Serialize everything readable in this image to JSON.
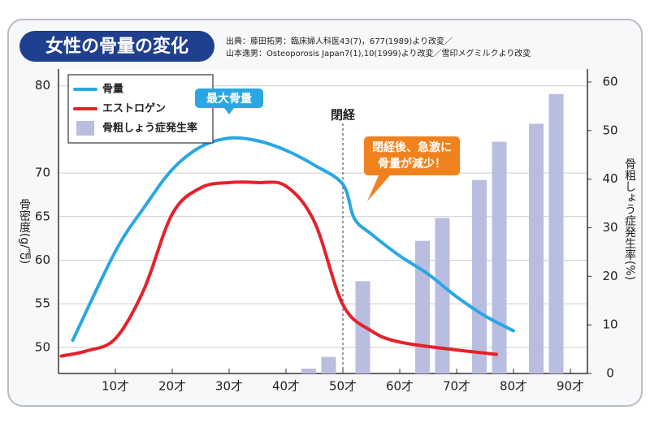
{
  "chart_data": {
    "type": "line",
    "title": "女性の骨量の変化",
    "source": [
      "出典：藤田拓男：臨床婦人科医43(7)，677(1989)より改変／",
      "山本逸男：Osteoporosis Japan7(1),10(1999)より改変／雪印メグミルクより改変"
    ],
    "ylabel": "骨密度(g/㎠)",
    "y2label": "骨粗しょう症発生率(%)",
    "xlim": [
      0,
      93
    ],
    "xticks": [
      {
        "value": 10,
        "label": "10才"
      },
      {
        "value": 20,
        "label": "20才"
      },
      {
        "value": 30,
        "label": "30才"
      },
      {
        "value": 40,
        "label": "40才"
      },
      {
        "value": 50,
        "label": "50才"
      },
      {
        "value": 60,
        "label": "60才"
      },
      {
        "value": 70,
        "label": "70才"
      },
      {
        "value": 80,
        "label": "80才"
      },
      {
        "value": 90,
        "label": "90才"
      }
    ],
    "ylim": [
      47,
      81
    ],
    "yticks": [
      50,
      55,
      60,
      65,
      70,
      80
    ],
    "y2lim": [
      0,
      61
    ],
    "y2ticks": [
      0,
      10,
      20,
      30,
      40,
      50,
      60
    ],
    "legend": "upper left",
    "series": [
      {
        "name": "骨量",
        "type": "line",
        "color": "#2aa7e3",
        "x": [
          2.5,
          10,
          15,
          20,
          25,
          30,
          35,
          40,
          45,
          50,
          52,
          55,
          60,
          65,
          70,
          75,
          80
        ],
        "values": [
          50.8,
          61,
          66,
          70.4,
          73,
          74,
          73.7,
          72.6,
          70.9,
          68.7,
          64.8,
          63,
          60.5,
          58.4,
          55.8,
          53.6,
          51.9
        ]
      },
      {
        "name": "エストロゲン",
        "type": "line",
        "color": "#e5212b",
        "x": [
          0.5,
          5,
          10,
          15,
          20,
          25,
          30,
          35,
          40,
          45,
          50,
          55,
          60,
          70,
          77
        ],
        "values": [
          49,
          49.6,
          51,
          56.6,
          65.3,
          68.3,
          68.9,
          68.9,
          68.5,
          64.4,
          54.9,
          51.9,
          50.6,
          49.7,
          49.2
        ]
      },
      {
        "name": "骨粗しょう症発生率",
        "type": "bar",
        "axis": "y2",
        "color": "#b9bde0",
        "x": [
          44,
          47.5,
          53.5,
          64,
          67.5,
          74,
          77.5,
          84,
          87.5
        ],
        "values": [
          1,
          3.4,
          19,
          27.3,
          32,
          39.8,
          47.7,
          51.4,
          57.5
        ]
      }
    ],
    "annotations": {
      "peak": {
        "text": "最大骨量",
        "x": 30
      },
      "menopause": {
        "text": "閉経",
        "x": 50
      },
      "decline": {
        "lines": [
          "閉経後、急激に",
          "骨量が減少！"
        ]
      }
    }
  }
}
